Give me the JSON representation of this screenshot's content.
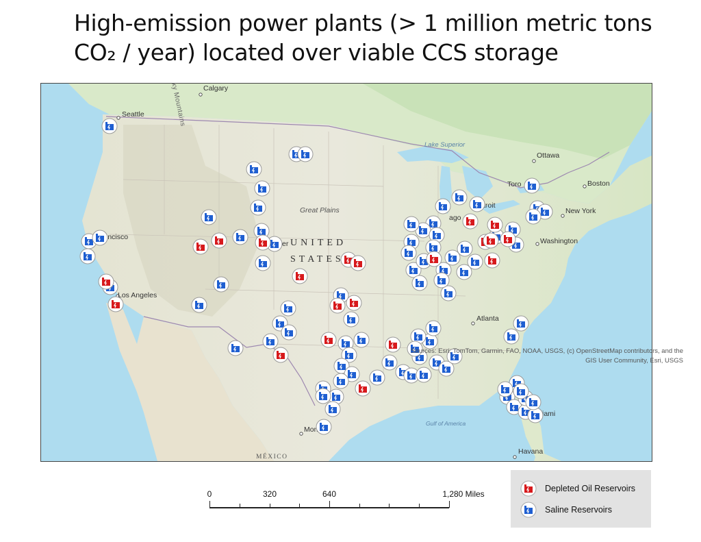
{
  "title": {
    "line1": "High-emission power plants (> 1 million metric tons",
    "line2": "CO₂ / year) located over viable CCS storage"
  },
  "map": {
    "place_labels": [
      {
        "id": "calgary",
        "text": "Calgary"
      },
      {
        "id": "seattle",
        "text": "Seattle"
      },
      {
        "id": "rocky",
        "text": "cky Mountains"
      },
      {
        "id": "lake-superior",
        "text": "Lake Superior"
      },
      {
        "id": "ottawa",
        "text": "Ottawa"
      },
      {
        "id": "toronto",
        "text": "Toro"
      },
      {
        "id": "boston",
        "text": "Boston"
      },
      {
        "id": "new-york",
        "text": "New York"
      },
      {
        "id": "great-plains",
        "text": "Great Plains"
      },
      {
        "id": "detroit",
        "text": "troit"
      },
      {
        "id": "chicago",
        "text": "ago"
      },
      {
        "id": "washington",
        "text": "Washington"
      },
      {
        "id": "san-francisco",
        "text": "rancisco"
      },
      {
        "id": "denver",
        "text": "er"
      },
      {
        "id": "united",
        "text": "UNITED"
      },
      {
        "id": "states",
        "text": "STATES"
      },
      {
        "id": "los-angeles",
        "text": "Los Angeles"
      },
      {
        "id": "atlanta",
        "text": "Atlanta"
      },
      {
        "id": "gulf-of-america",
        "text": "Gulf of America"
      },
      {
        "id": "monterrey",
        "text": "Mon"
      },
      {
        "id": "miami",
        "text": "iami"
      },
      {
        "id": "mexico",
        "text": "MÉXICO"
      },
      {
        "id": "havana",
        "text": "Havana"
      }
    ],
    "attribution_line1": "Sources: Esri, TomTom, Garmin, FAO, NOAA, USGS, (c) OpenStreetMap contributors, and the",
    "attribution_line2": "GIS User Community, Esri, USGS"
  },
  "scalebar": {
    "labels": [
      "0",
      "320",
      "640",
      "1,280 Miles"
    ]
  },
  "legend": {
    "items": [
      {
        "label": "Depleted Oil Reservoirs",
        "color": "#d7191c",
        "icon": "depleted-oil-plant-icon"
      },
      {
        "label": "Saline Reservoirs",
        "color": "#1f5fd1",
        "icon": "saline-plant-icon"
      }
    ]
  },
  "colors": {
    "ocean": "#aedcef",
    "land_west": "#e2e6d4",
    "land_east": "#d8e7c6",
    "canada_forest": "#cfe6bf",
    "mexico": "#e6e1cf",
    "depleted_oil": "#d7191c",
    "saline": "#1f5fd1"
  },
  "markers": {
    "depleted": [
      [
        154,
        410
      ],
      [
        168,
        443
      ],
      [
        292,
        359
      ],
      [
        319,
        350
      ],
      [
        383,
        353
      ],
      [
        437,
        402
      ],
      [
        508,
        378
      ],
      [
        522,
        383
      ],
      [
        492,
        445
      ],
      [
        516,
        441
      ],
      [
        479,
        495
      ],
      [
        409,
        517
      ],
      [
        573,
        502
      ],
      [
        529,
        566
      ],
      [
        633,
        377
      ],
      [
        686,
        322
      ],
      [
        708,
        352
      ],
      [
        718,
        379
      ],
      [
        722,
        327
      ],
      [
        741,
        348
      ],
      [
        716,
        350
      ]
    ],
    "saline": [
      [
        159,
        183
      ],
      [
        432,
        224
      ],
      [
        445,
        224
      ],
      [
        370,
        246
      ],
      [
        382,
        274
      ],
      [
        376,
        302
      ],
      [
        304,
        316
      ],
      [
        350,
        345
      ],
      [
        381,
        336
      ],
      [
        383,
        383
      ],
      [
        400,
        355
      ],
      [
        322,
        414
      ],
      [
        290,
        444
      ],
      [
        420,
        449
      ],
      [
        408,
        471
      ],
      [
        394,
        497
      ],
      [
        421,
        484
      ],
      [
        343,
        507
      ],
      [
        129,
        351
      ],
      [
        145,
        346
      ],
      [
        127,
        373
      ],
      [
        160,
        418
      ],
      [
        497,
        430
      ],
      [
        512,
        465
      ],
      [
        504,
        500
      ],
      [
        527,
        495
      ],
      [
        509,
        517
      ],
      [
        498,
        533
      ],
      [
        513,
        545
      ],
      [
        497,
        555
      ],
      [
        471,
        566
      ],
      [
        490,
        578
      ],
      [
        471,
        577
      ],
      [
        485,
        596
      ],
      [
        472,
        622
      ],
      [
        550,
        550
      ],
      [
        568,
        528
      ],
      [
        588,
        542
      ],
      [
        600,
        547
      ],
      [
        612,
        520
      ],
      [
        627,
        497
      ],
      [
        610,
        490
      ],
      [
        605,
        508
      ],
      [
        632,
        478
      ],
      [
        618,
        546
      ],
      [
        637,
        528
      ],
      [
        651,
        537
      ],
      [
        663,
        519
      ],
      [
        670,
        287
      ],
      [
        646,
        300
      ],
      [
        632,
        325
      ],
      [
        617,
        335
      ],
      [
        600,
        326
      ],
      [
        600,
        352
      ],
      [
        603,
        393
      ],
      [
        612,
        412
      ],
      [
        637,
        342
      ],
      [
        632,
        360
      ],
      [
        647,
        393
      ],
      [
        660,
        375
      ],
      [
        677,
        396
      ],
      [
        654,
        427
      ],
      [
        693,
        381
      ],
      [
        678,
        362
      ],
      [
        696,
        297
      ],
      [
        724,
        344
      ],
      [
        748,
        334
      ],
      [
        753,
        356
      ],
      [
        776,
        270
      ],
      [
        784,
        303
      ],
      [
        795,
        308
      ],
      [
        778,
        315
      ],
      [
        760,
        471
      ],
      [
        746,
        490
      ],
      [
        754,
        558
      ],
      [
        740,
        578
      ],
      [
        750,
        593
      ],
      [
        767,
        600
      ],
      [
        781,
        605
      ],
      [
        767,
        580
      ],
      [
        778,
        586
      ],
      [
        760,
        570
      ],
      [
        737,
        567
      ],
      [
        596,
        368
      ],
      [
        618,
        380
      ],
      [
        644,
        408
      ]
    ]
  }
}
